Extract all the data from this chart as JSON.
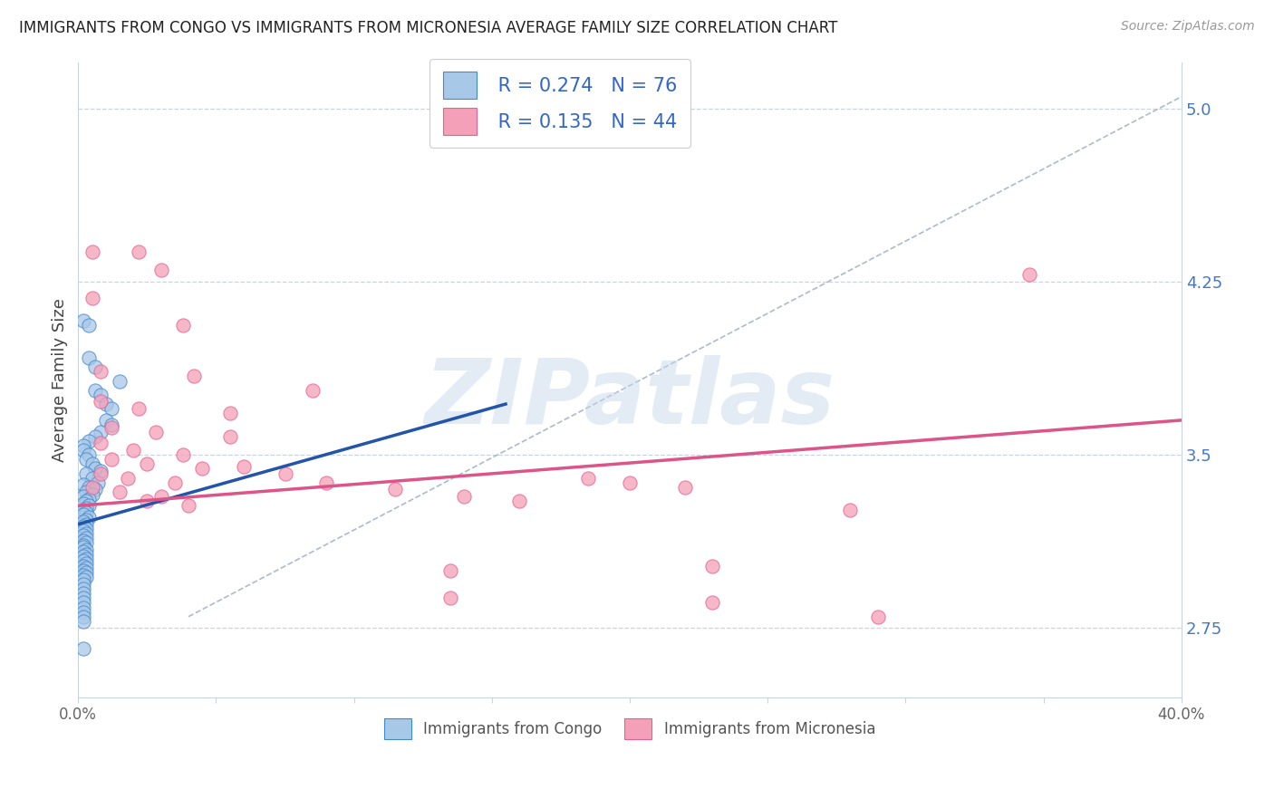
{
  "title": "IMMIGRANTS FROM CONGO VS IMMIGRANTS FROM MICRONESIA AVERAGE FAMILY SIZE CORRELATION CHART",
  "source": "Source: ZipAtlas.com",
  "ylabel": "Average Family Size",
  "xlim": [
    0.0,
    0.4
  ],
  "ylim": [
    2.45,
    5.2
  ],
  "xticks": [
    0.0,
    0.05,
    0.1,
    0.15,
    0.2,
    0.25,
    0.3,
    0.35,
    0.4
  ],
  "xticklabels": [
    "0.0%",
    "",
    "",
    "",
    "",
    "",
    "",
    "",
    "40.0%"
  ],
  "yticks_right": [
    2.75,
    3.5,
    4.25,
    5.0
  ],
  "congo_color": "#a8c8e8",
  "micronesia_color": "#f4a0b8",
  "congo_edge_color": "#4488cc",
  "micronesia_edge_color": "#e86090",
  "congo_line_color": "#2255aa",
  "micronesia_line_color": "#dd5588",
  "diagonal_color": "#aabbcc",
  "legend_R_congo": "0.274",
  "legend_N_congo": "76",
  "legend_R_micro": "0.135",
  "legend_N_micro": "44",
  "legend_label_congo": "Immigrants from Congo",
  "legend_label_micro": "Immigrants from Micronesia",
  "watermark": "ZIPatlas",
  "congo_points": [
    [
      0.002,
      4.08
    ],
    [
      0.004,
      4.06
    ],
    [
      0.004,
      3.92
    ],
    [
      0.006,
      3.88
    ],
    [
      0.006,
      3.78
    ],
    [
      0.008,
      3.76
    ],
    [
      0.01,
      3.72
    ],
    [
      0.012,
      3.7
    ],
    [
      0.01,
      3.65
    ],
    [
      0.012,
      3.63
    ],
    [
      0.008,
      3.6
    ],
    [
      0.006,
      3.58
    ],
    [
      0.004,
      3.56
    ],
    [
      0.002,
      3.54
    ],
    [
      0.002,
      3.52
    ],
    [
      0.004,
      3.5
    ],
    [
      0.003,
      3.48
    ],
    [
      0.005,
      3.46
    ],
    [
      0.006,
      3.44
    ],
    [
      0.008,
      3.43
    ],
    [
      0.003,
      3.42
    ],
    [
      0.005,
      3.4
    ],
    [
      0.007,
      3.38
    ],
    [
      0.002,
      3.37
    ],
    [
      0.004,
      3.36
    ],
    [
      0.006,
      3.35
    ],
    [
      0.003,
      3.34
    ],
    [
      0.005,
      3.33
    ],
    [
      0.002,
      3.32
    ],
    [
      0.004,
      3.31
    ],
    [
      0.003,
      3.3
    ],
    [
      0.002,
      3.29
    ],
    [
      0.004,
      3.28
    ],
    [
      0.003,
      3.27
    ],
    [
      0.002,
      3.26
    ],
    [
      0.003,
      3.25
    ],
    [
      0.002,
      3.24
    ],
    [
      0.004,
      3.23
    ],
    [
      0.003,
      3.22
    ],
    [
      0.002,
      3.21
    ],
    [
      0.003,
      3.2
    ],
    [
      0.002,
      3.19
    ],
    [
      0.003,
      3.18
    ],
    [
      0.002,
      3.17
    ],
    [
      0.003,
      3.16
    ],
    [
      0.002,
      3.15
    ],
    [
      0.003,
      3.14
    ],
    [
      0.002,
      3.13
    ],
    [
      0.003,
      3.12
    ],
    [
      0.002,
      3.11
    ],
    [
      0.002,
      3.1
    ],
    [
      0.003,
      3.09
    ],
    [
      0.002,
      3.08
    ],
    [
      0.003,
      3.07
    ],
    [
      0.002,
      3.06
    ],
    [
      0.003,
      3.05
    ],
    [
      0.002,
      3.04
    ],
    [
      0.003,
      3.03
    ],
    [
      0.002,
      3.02
    ],
    [
      0.003,
      3.01
    ],
    [
      0.002,
      3.0
    ],
    [
      0.003,
      2.99
    ],
    [
      0.002,
      2.98
    ],
    [
      0.003,
      2.97
    ],
    [
      0.002,
      2.96
    ],
    [
      0.002,
      2.94
    ],
    [
      0.002,
      2.92
    ],
    [
      0.002,
      2.9
    ],
    [
      0.002,
      2.88
    ],
    [
      0.002,
      2.86
    ],
    [
      0.002,
      2.84
    ],
    [
      0.002,
      2.82
    ],
    [
      0.002,
      2.8
    ],
    [
      0.002,
      2.78
    ],
    [
      0.015,
      3.82
    ],
    [
      0.002,
      2.66
    ]
  ],
  "micro_points": [
    [
      0.005,
      4.38
    ],
    [
      0.022,
      4.38
    ],
    [
      0.03,
      4.3
    ],
    [
      0.345,
      4.28
    ],
    [
      0.005,
      4.18
    ],
    [
      0.038,
      4.06
    ],
    [
      0.008,
      3.86
    ],
    [
      0.042,
      3.84
    ],
    [
      0.085,
      3.78
    ],
    [
      0.008,
      3.73
    ],
    [
      0.022,
      3.7
    ],
    [
      0.055,
      3.68
    ],
    [
      0.012,
      3.62
    ],
    [
      0.028,
      3.6
    ],
    [
      0.055,
      3.58
    ],
    [
      0.008,
      3.55
    ],
    [
      0.02,
      3.52
    ],
    [
      0.038,
      3.5
    ],
    [
      0.012,
      3.48
    ],
    [
      0.025,
      3.46
    ],
    [
      0.045,
      3.44
    ],
    [
      0.008,
      3.42
    ],
    [
      0.018,
      3.4
    ],
    [
      0.035,
      3.38
    ],
    [
      0.005,
      3.36
    ],
    [
      0.015,
      3.34
    ],
    [
      0.03,
      3.32
    ],
    [
      0.025,
      3.3
    ],
    [
      0.04,
      3.28
    ],
    [
      0.06,
      3.45
    ],
    [
      0.075,
      3.42
    ],
    [
      0.09,
      3.38
    ],
    [
      0.115,
      3.35
    ],
    [
      0.14,
      3.32
    ],
    [
      0.16,
      3.3
    ],
    [
      0.185,
      3.4
    ],
    [
      0.2,
      3.38
    ],
    [
      0.22,
      3.36
    ],
    [
      0.28,
      3.26
    ],
    [
      0.135,
      3.0
    ],
    [
      0.23,
      3.02
    ],
    [
      0.135,
      2.88
    ],
    [
      0.23,
      2.86
    ],
    [
      0.29,
      2.8
    ]
  ],
  "congo_line_x": [
    0.0,
    0.155
  ],
  "congo_line_y": [
    3.2,
    3.72
  ],
  "micro_line_x": [
    0.0,
    0.4
  ],
  "micro_line_y": [
    3.28,
    3.65
  ],
  "diag_line_x": [
    0.04,
    0.4
  ],
  "diag_line_y": [
    2.8,
    5.05
  ]
}
